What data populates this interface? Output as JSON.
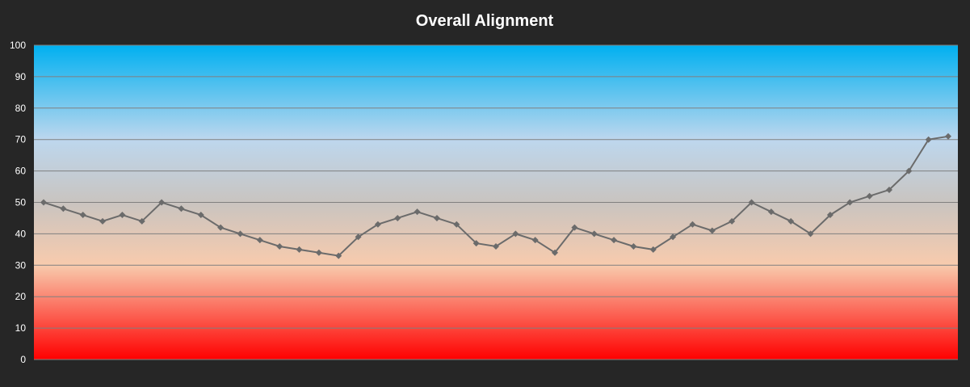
{
  "chart_data": {
    "type": "line",
    "title": "Overall Alignment",
    "xlabel": "",
    "ylabel": "",
    "ylim": [
      0,
      100
    ],
    "yticks": [
      0,
      10,
      20,
      30,
      40,
      50,
      60,
      70,
      80,
      90,
      100
    ],
    "grid": true,
    "legend": "none",
    "series": [
      {
        "values": [
          50,
          48,
          46,
          44,
          46,
          44,
          50,
          48,
          46,
          42,
          40,
          38,
          36,
          35,
          34,
          33,
          39,
          43,
          45,
          47,
          45,
          43,
          37,
          36,
          40,
          38,
          34,
          42,
          40,
          38,
          36,
          35,
          39,
          43,
          41,
          44,
          50,
          47,
          44,
          40,
          46,
          50,
          52,
          54,
          60,
          70,
          71
        ]
      }
    ]
  },
  "colors": {
    "background": "#262626",
    "line": "#6b6b6b",
    "grid": "#808080",
    "band_top": "#00b0f0",
    "band_light_blue": "#bdd7ee",
    "band_grey": "#c9c4c0",
    "band_peach": "#f8cbad",
    "band_bottom": "#ff0000"
  }
}
